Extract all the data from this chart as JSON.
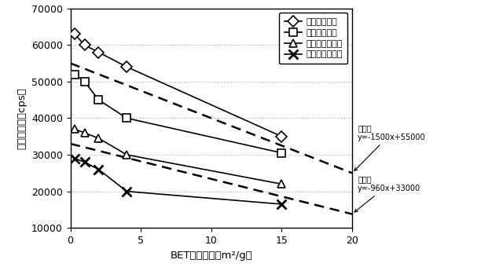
{
  "xlabel": "BET比表面積（m²/g）",
  "ylabel": "ピーク強度（cps）",
  "xlim": [
    0,
    20
  ],
  "ylim": [
    10000,
    70000
  ],
  "yticks": [
    10000,
    20000,
    30000,
    40000,
    50000,
    60000,
    70000
  ],
  "xticks": [
    0,
    5,
    10,
    15,
    20
  ],
  "series1_x": [
    0.3,
    1,
    2,
    4,
    15
  ],
  "series1_y": [
    63000,
    60000,
    58000,
    54000,
    35000
  ],
  "series1_label": "実施例１～５",
  "series2_x": [
    0.3,
    1,
    2,
    4,
    15
  ],
  "series2_y": [
    52000,
    50000,
    45000,
    40000,
    30500
  ],
  "series2_label": "比較例１～５",
  "series3_x": [
    0.3,
    1,
    2,
    4,
    15
  ],
  "series3_y": [
    37000,
    36000,
    34500,
    30000,
    22000
  ],
  "series3_label": "実施例６～１０",
  "series4_x": [
    0.3,
    1,
    2,
    4,
    15
  ],
  "series4_y": [
    29000,
    28000,
    26000,
    20000,
    16500
  ],
  "series4_label": "比較例６～１０",
  "lineB_slope": -1500,
  "lineB_intercept": 55000,
  "lineA_slope": -960,
  "lineA_intercept": 33000,
  "annotation_lineB_line1": "直線Ｂ",
  "annotation_lineB_line2": "y=-1500x+55000",
  "annotation_lineA_line1": "直線Ａ",
  "annotation_lineA_line2": "y=-960x+33000",
  "background_color": "#ffffff",
  "grid_color": "#aaaaaa",
  "fig_width": 6.4,
  "fig_height": 3.54,
  "dpi": 100
}
